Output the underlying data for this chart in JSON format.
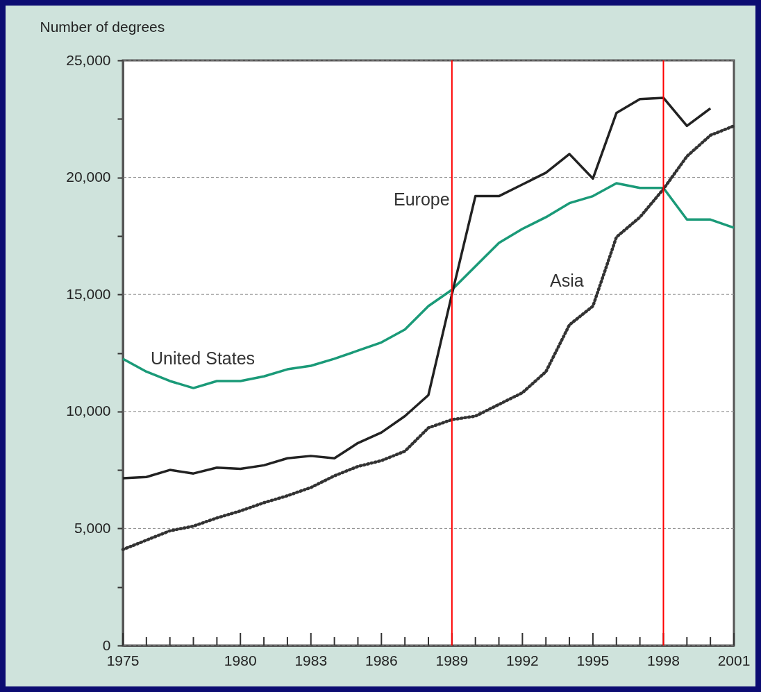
{
  "chart_data": {
    "type": "line",
    "ylabel": "Number of degrees",
    "x": [
      1975,
      1976,
      1977,
      1978,
      1979,
      1980,
      1981,
      1982,
      1983,
      1984,
      1985,
      1986,
      1987,
      1988,
      1989,
      1990,
      1991,
      1992,
      1993,
      1994,
      1995,
      1996,
      1997,
      1998,
      1999,
      2000,
      2001
    ],
    "series": [
      {
        "name": "United States",
        "color": "#1a9a78",
        "line_style": "solid",
        "values": [
          12250,
          11700,
          11300,
          11000,
          11300,
          11300,
          11500,
          11800,
          11950,
          12250,
          12600,
          12950,
          13500,
          14500,
          15200,
          16200,
          17200,
          17800,
          18300,
          18900,
          19200,
          19750,
          19550,
          19550,
          18200,
          18200,
          17850
        ]
      },
      {
        "name": "Europe",
        "color": "#222222",
        "line_style": "solid",
        "values": [
          7150,
          7200,
          7500,
          7350,
          7600,
          7550,
          7700,
          8000,
          8100,
          8000,
          8650,
          9100,
          9800,
          10700,
          15000,
          19200,
          19200,
          19700,
          20200,
          21000,
          19950,
          22750,
          23350,
          23400,
          22200,
          22950,
          null
        ]
      },
      {
        "name": "Asia",
        "color": "#333333",
        "line_style": "dotted",
        "values": [
          4100,
          4500,
          4900,
          5100,
          5450,
          5750,
          6100,
          6400,
          6750,
          7250,
          7650,
          7900,
          8300,
          9300,
          9650,
          9800,
          10300,
          10800,
          11700,
          13700,
          14500,
          17450,
          18300,
          19500,
          20900,
          21800,
          22200
        ]
      }
    ],
    "xlim": [
      1975,
      2001
    ],
    "xticks": [
      1975,
      {
        "value": 1976,
        "label": null
      },
      {
        "value": 1977,
        "label": null
      },
      {
        "value": 1978,
        "label": null
      },
      {
        "value": 1979,
        "label": null
      },
      1980,
      {
        "value": 1981,
        "label": null
      },
      {
        "value": 1982,
        "label": null
      },
      1983,
      {
        "value": 1984,
        "label": null
      },
      {
        "value": 1985,
        "label": null
      },
      1986,
      {
        "value": 1987,
        "label": null
      },
      {
        "value": 1988,
        "label": null
      },
      1989,
      {
        "value": 1990,
        "label": null
      },
      {
        "value": 1991,
        "label": null
      },
      1992,
      {
        "value": 1993,
        "label": null
      },
      {
        "value": 1994,
        "label": null
      },
      1995,
      {
        "value": 1996,
        "label": null
      },
      {
        "value": 1997,
        "label": null
      },
      1998,
      {
        "value": 1999,
        "label": null
      },
      {
        "value": 2000,
        "label": null
      },
      2001
    ],
    "ylim": [
      0,
      25000
    ],
    "yticks": [
      0,
      {
        "value": 2500,
        "label": null
      },
      {
        "value": 5000,
        "label": "5,000"
      },
      {
        "value": 7500,
        "label": null
      },
      {
        "value": 10000,
        "label": "10,000"
      },
      {
        "value": 12500,
        "label": null
      },
      {
        "value": 15000,
        "label": "15,000"
      },
      {
        "value": 17500,
        "label": null
      },
      {
        "value": 20000,
        "label": "20,000"
      },
      {
        "value": 22500,
        "label": null
      },
      {
        "value": 25000,
        "label": "25,000"
      }
    ],
    "grid": "y",
    "legend": false,
    "marker": "none",
    "ref_lines": [
      {
        "axis": "x",
        "value": 1989,
        "label": null,
        "color": "#ff0000"
      },
      {
        "axis": "x",
        "value": 1998,
        "label": null,
        "color": "#ff0000"
      }
    ]
  }
}
